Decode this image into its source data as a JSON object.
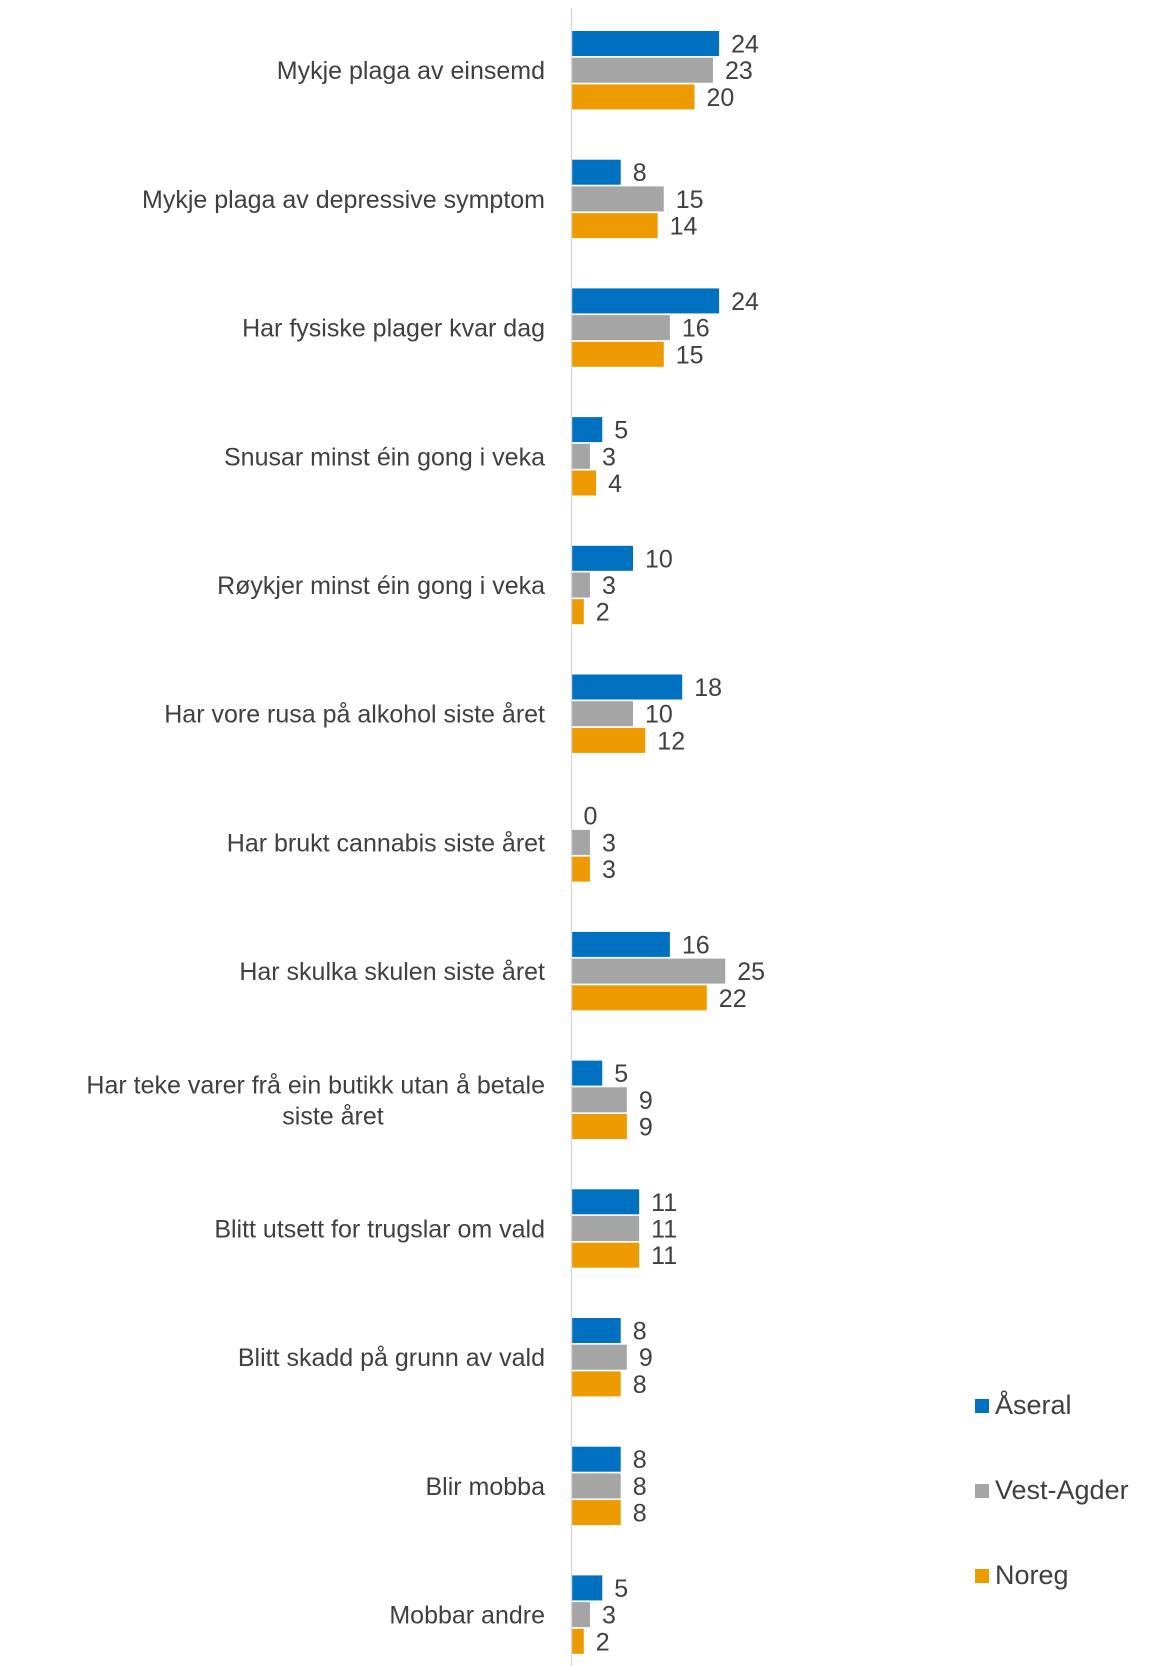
{
  "chart_data": {
    "type": "bar",
    "orientation": "horizontal",
    "title": "",
    "xlabel": "",
    "ylabel": "",
    "xlim": [
      0,
      25
    ],
    "grid": false,
    "legend_position": "right",
    "categories": [
      "Mykje plaga av einsemd",
      "Mykje plaga av depressive symptom",
      "Har fysiske plager kvar dag",
      "Snusar minst éin gong i veka",
      "Røykjer minst éin gong i veka",
      "Har vore rusa på alkohol siste året",
      "Har brukt cannabis siste året",
      "Har skulka skulen siste året",
      "Har teke varer frå ein butikk utan å betale siste året",
      "Blitt utsett for trugslar om vald",
      "Blitt skadd på grunn av vald",
      "Blir mobba",
      "Mobbar andre"
    ],
    "series": [
      {
        "name": "Åseral",
        "color": "#0070C0",
        "values": [
          24,
          8,
          24,
          5,
          10,
          18,
          0,
          16,
          5,
          11,
          8,
          8,
          5
        ]
      },
      {
        "name": "Vest-Agder",
        "color": "#A5A5A5",
        "values": [
          23,
          15,
          16,
          3,
          3,
          10,
          3,
          25,
          9,
          11,
          9,
          8,
          3
        ]
      },
      {
        "name": "Noreg",
        "color": "#ED9B00",
        "values": [
          20,
          14,
          15,
          4,
          2,
          12,
          3,
          22,
          9,
          11,
          8,
          8,
          2
        ]
      }
    ]
  }
}
